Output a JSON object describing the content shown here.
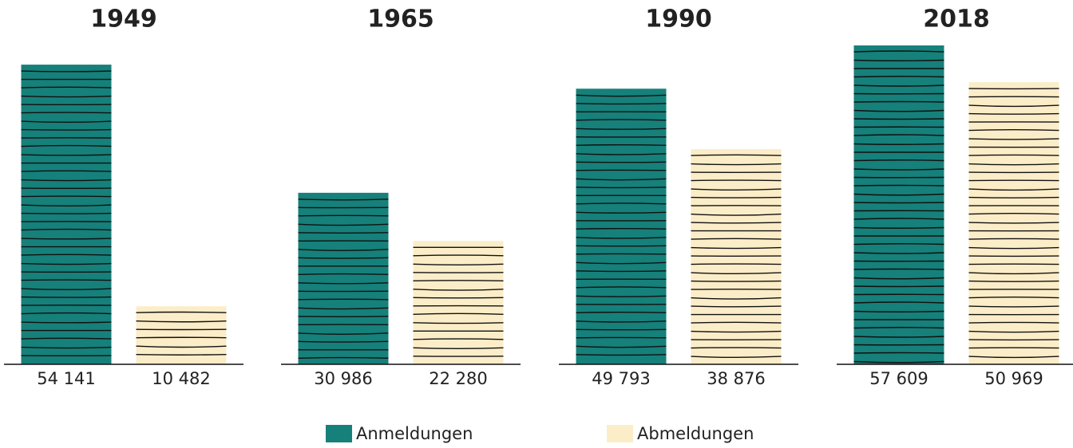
{
  "chart_data": {
    "type": "bar",
    "categories": [
      "1949",
      "1965",
      "1990",
      "2018"
    ],
    "series": [
      {
        "name": "Anmeldungen",
        "color": "#16807a",
        "values": [
          54141,
          30986,
          49793,
          57609
        ],
        "value_labels": [
          "54 141",
          "30 986",
          "49 793",
          "57 609"
        ]
      },
      {
        "name": "Abmeldungen",
        "color": "#fbedc8",
        "values": [
          10482,
          22280,
          38876,
          50969
        ],
        "value_labels": [
          "10 482",
          "22 280",
          "38 876",
          "50 969"
        ]
      }
    ]
  }
}
